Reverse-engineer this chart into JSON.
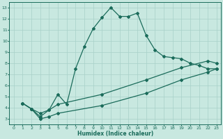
{
  "xlabel": "Humidex (Indice chaleur)",
  "bg_color": "#c8e8e0",
  "line_color": "#1a6b5a",
  "grid_color": "#a8d0c8",
  "xlim": [
    -0.5,
    23.5
  ],
  "ylim": [
    2.5,
    13.5
  ],
  "xticks": [
    0,
    1,
    2,
    3,
    4,
    5,
    6,
    7,
    8,
    9,
    10,
    11,
    12,
    13,
    14,
    15,
    16,
    17,
    18,
    19,
    20,
    21,
    22,
    23
  ],
  "yticks": [
    3,
    4,
    5,
    6,
    7,
    8,
    9,
    10,
    11,
    12,
    13
  ],
  "line1_x": [
    1,
    2,
    3,
    4,
    5,
    6,
    7,
    8,
    9,
    10,
    11,
    12,
    13,
    14,
    15,
    16,
    17,
    18,
    19,
    20,
    21,
    22,
    23
  ],
  "line1_y": [
    4.4,
    3.9,
    3.2,
    3.8,
    5.2,
    4.3,
    7.5,
    9.5,
    11.1,
    12.1,
    13.0,
    12.2,
    12.2,
    12.5,
    10.5,
    9.2,
    8.6,
    8.5,
    8.4,
    8.0,
    7.8,
    7.5,
    7.5
  ],
  "line2_x": [
    1,
    2,
    3,
    4,
    5,
    10,
    15,
    19,
    22,
    23
  ],
  "line2_y": [
    4.4,
    3.9,
    3.5,
    3.8,
    4.3,
    5.2,
    6.5,
    7.6,
    8.2,
    8.0
  ],
  "line3_x": [
    1,
    2,
    3,
    4,
    5,
    10,
    15,
    19,
    22,
    23
  ],
  "line3_y": [
    4.4,
    3.9,
    3.0,
    3.2,
    3.5,
    4.2,
    5.3,
    6.5,
    7.2,
    7.5
  ]
}
